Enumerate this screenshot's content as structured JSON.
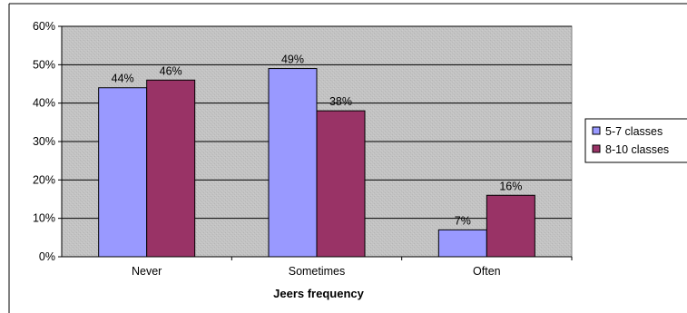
{
  "chart_data": {
    "type": "bar",
    "title": "",
    "xlabel": "Jeers frequency",
    "ylabel": "",
    "categories": [
      "Never",
      "Sometimes",
      "Often"
    ],
    "series": [
      {
        "name": "5-7 classes",
        "values": [
          44,
          49,
          7
        ],
        "labels": [
          "44%",
          "49%",
          "7%"
        ],
        "color": "#9999ff"
      },
      {
        "name": "8-10 classes",
        "values": [
          46,
          38,
          16
        ],
        "labels": [
          "46%",
          "38%",
          "16%"
        ],
        "color": "#993366"
      }
    ],
    "ylim": [
      0,
      60
    ],
    "yticks": [
      "0%",
      "10%",
      "20%",
      "30%",
      "40%",
      "50%",
      "60%"
    ],
    "grid": true,
    "legend_position": "right",
    "plot_background": "#c0c0c0"
  }
}
